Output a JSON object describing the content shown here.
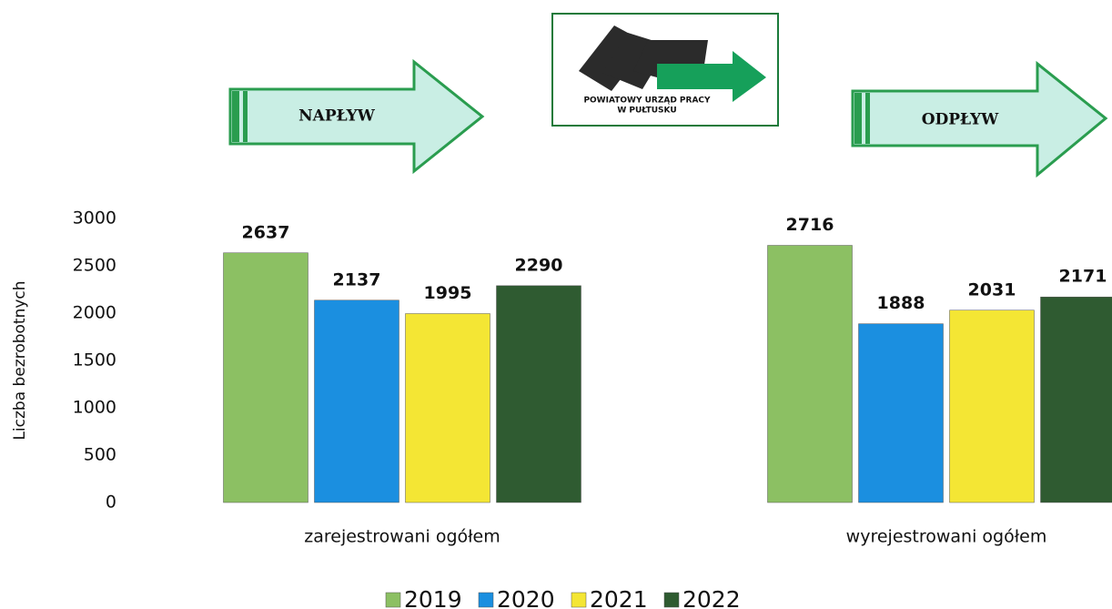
{
  "chart_data": {
    "type": "bar",
    "y_label": "Liczba bezrobotnych",
    "categories": [
      "zarejestrowani ogółem",
      "wyrejestrowani ogółem"
    ],
    "series": [
      {
        "name": "2019",
        "color": "#8cc063",
        "values": [
          2637,
          2716
        ]
      },
      {
        "name": "2020",
        "color": "#1b8fe0",
        "values": [
          2137,
          1888
        ]
      },
      {
        "name": "2021",
        "color": "#f4e634",
        "values": [
          1995,
          2031
        ]
      },
      {
        "name": "2022",
        "color": "#2f5b31",
        "values": [
          2290,
          2171
        ]
      }
    ],
    "ylim": [
      0,
      3000
    ],
    "yticks": [
      0,
      500,
      1000,
      1500,
      2000,
      2500,
      3000
    ],
    "grid": false,
    "legend": "bottom",
    "annotations": [
      "NAPŁYW",
      "ODPŁYW"
    ],
    "logo_text": [
      "POWIATOWY URZĄD PRACY",
      "W PUŁTUSKU"
    ]
  }
}
